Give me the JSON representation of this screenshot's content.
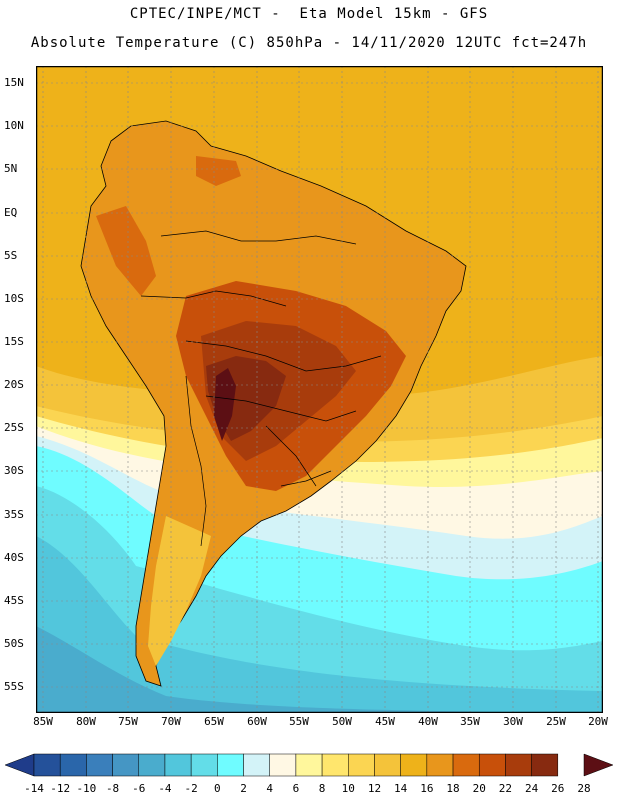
{
  "header": {
    "line1": "CPTEC/INPE/MCT -  Eta Model 15km - GFS",
    "line2": "Absolute Temperature (C) 850hPa - 14/11/2020 12UTC fct=247h"
  },
  "axes": {
    "lat_labels": [
      "15N",
      "10N",
      "5N",
      "EQ",
      "5S",
      "10S",
      "15S",
      "20S",
      "25S",
      "30S",
      "35S",
      "40S",
      "45S",
      "50S",
      "55S"
    ],
    "lon_labels": [
      "85W",
      "80W",
      "75W",
      "70W",
      "65W",
      "60W",
      "55W",
      "50W",
      "45W",
      "40W",
      "35W",
      "30W",
      "25W",
      "20W"
    ]
  },
  "colorbar": {
    "labels": [
      "-14",
      "-12",
      "-10",
      "-8",
      "-6",
      "-4",
      "-2",
      "0",
      "2",
      "4",
      "6",
      "8",
      "10",
      "12",
      "14",
      "16",
      "18",
      "20",
      "22",
      "24",
      "26",
      "28"
    ],
    "colors": [
      "#1f3c8a",
      "#24519a",
      "#2a66aa",
      "#3a7fbb",
      "#4596c4",
      "#4aaccd",
      "#52c6dc",
      "#63dde8",
      "#6ffcff",
      "#d3f3f8",
      "#fff8e4",
      "#fff79c",
      "#ffe66d",
      "#fbd552",
      "#f4c33a",
      "#eeb21a",
      "#e8961c",
      "#d96a0e",
      "#c8500a",
      "#a83c0c",
      "#872a10",
      "#5c0f14"
    ]
  },
  "map_colors": {
    "ocean_cold": "#52c6dc",
    "ocean_cyan": "#6ffcff",
    "ocean_light": "#d3f3f8",
    "ocean_cream": "#fff8e4",
    "ocean_yellow": "#fff79c",
    "warm_band": "#f4c33a",
    "tropical": "#eeb21a",
    "continent_orange": "#e8961c",
    "hot": "#c8500a",
    "hotter": "#a83c0c",
    "hottest": "#5c0f14"
  }
}
